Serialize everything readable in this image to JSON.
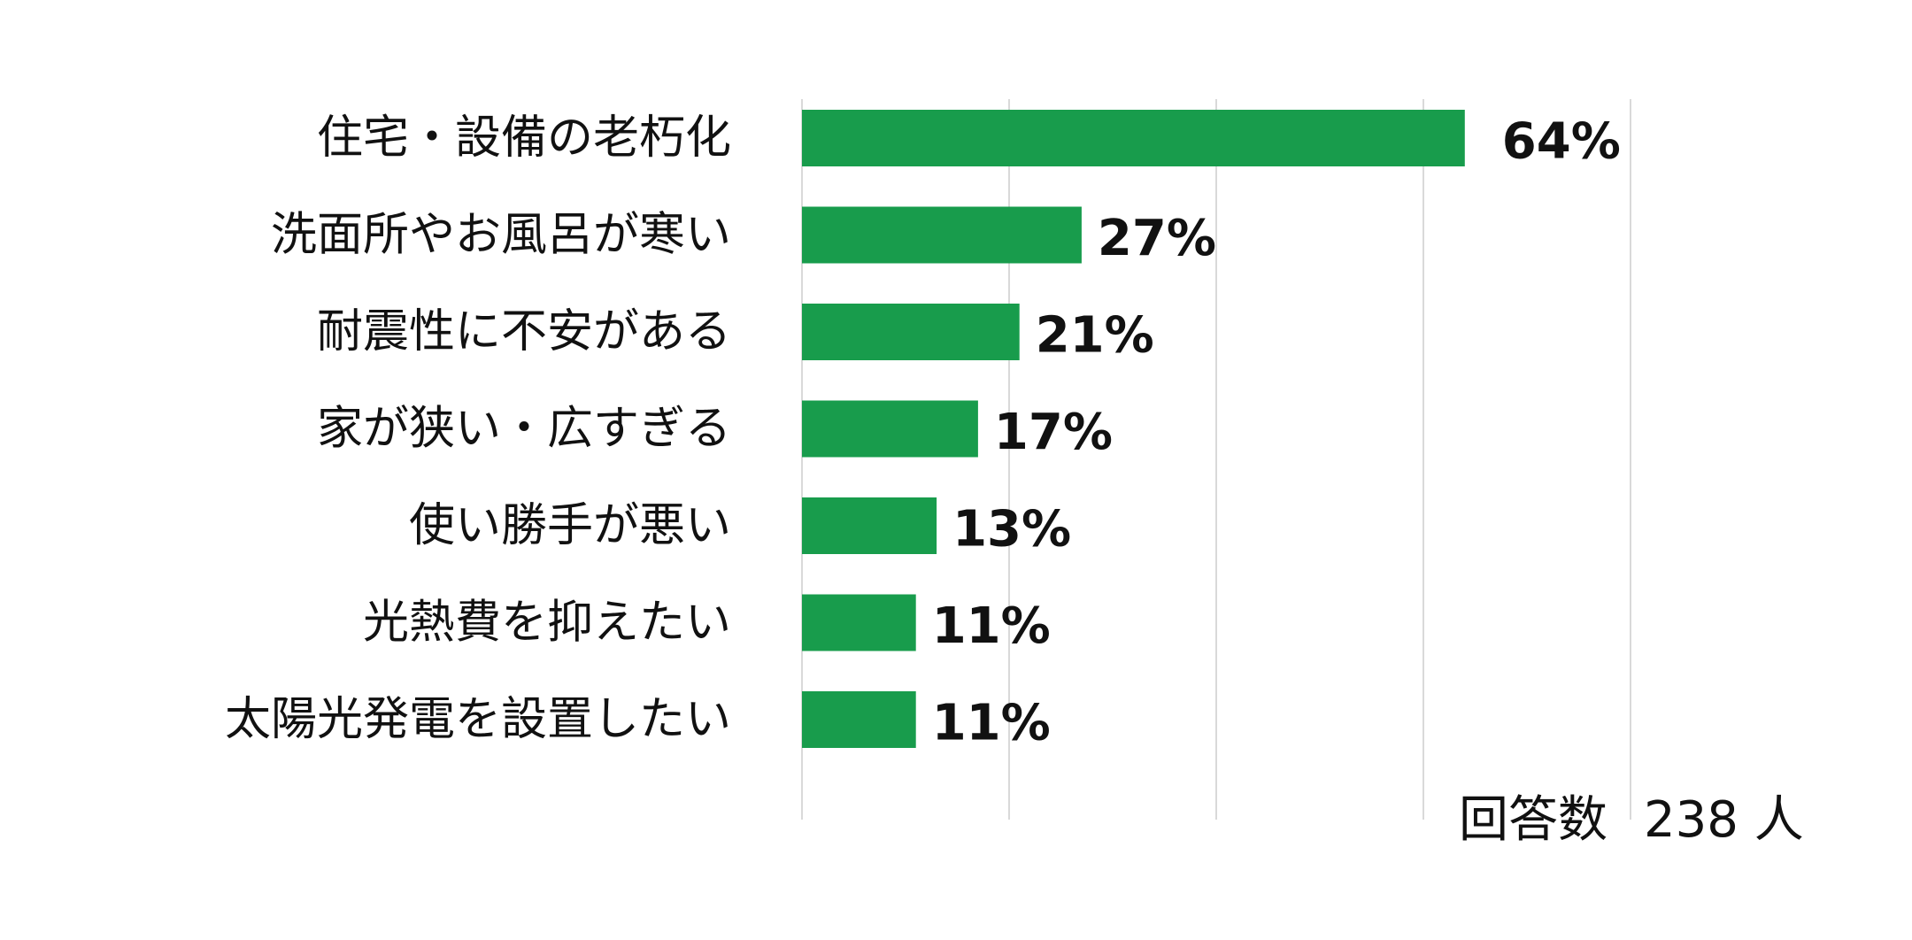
{
  "chart_data": {
    "type": "bar",
    "orientation": "horizontal",
    "categories": [
      "住宅・設備の老朽化",
      "洗面所やお風呂が寒い",
      "耐震性に不安がある",
      "家が狭い・広すぎる",
      "使い勝手が悪い",
      "光熱費を抑えたい",
      "太陽光発電を設置したい"
    ],
    "values": [
      64,
      27,
      21,
      17,
      13,
      11,
      11
    ],
    "value_labels": [
      "64%",
      "27%",
      "21%",
      "17%",
      "13%",
      "11%",
      "11%"
    ],
    "unit": "%",
    "xlim": [
      0,
      80
    ],
    "grid": true,
    "bar_color": "#189c4c",
    "grid_color": "#d9d9d9"
  },
  "note": {
    "label": "回答数",
    "count": "238 人"
  }
}
